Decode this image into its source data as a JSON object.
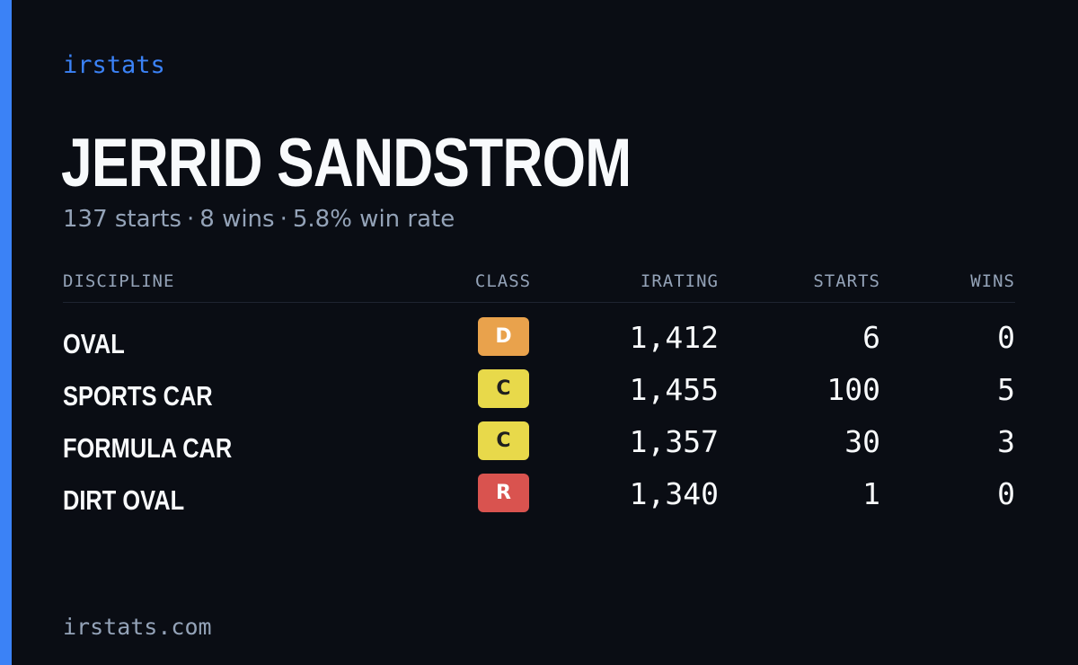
{
  "brand": "irstats",
  "driver": {
    "name": "JERRID SANDSTROM",
    "starts_text": "137 starts",
    "wins_text": "8 wins",
    "win_rate_text": "5.8% win rate",
    "separator": "·"
  },
  "table": {
    "headers": {
      "discipline": "DISCIPLINE",
      "class": "CLASS",
      "irating": "IRATING",
      "starts": "STARTS",
      "wins": "WINS"
    },
    "rows": [
      {
        "discipline": "OVAL",
        "class": "D",
        "class_color": "#e9a24c",
        "irating": "1,412",
        "starts": "6",
        "wins": "0"
      },
      {
        "discipline": "SPORTS CAR",
        "class": "C",
        "class_color": "#e8d94a",
        "irating": "1,455",
        "starts": "100",
        "wins": "5"
      },
      {
        "discipline": "FORMULA CAR",
        "class": "C",
        "class_color": "#e8d94a",
        "irating": "1,357",
        "starts": "30",
        "wins": "3"
      },
      {
        "discipline": "DIRT OVAL",
        "class": "R",
        "class_color": "#d9534f",
        "irating": "1,340",
        "starts": "1",
        "wins": "0"
      }
    ]
  },
  "footer": "irstats.com",
  "colors": {
    "background": "#0a0d14",
    "accent": "#3b82f6",
    "text": "#f8fafc",
    "muted": "#94a3b8"
  }
}
